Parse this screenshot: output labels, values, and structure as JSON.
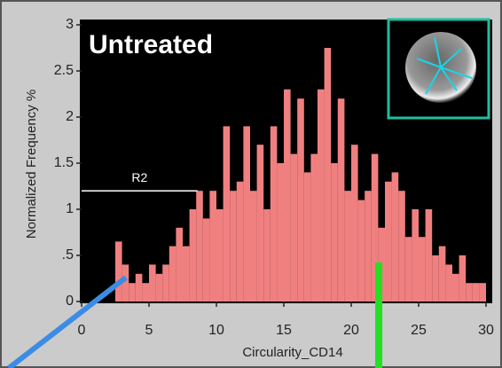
{
  "chart_data": {
    "type": "histogram",
    "title": "Untreated",
    "xlabel": "Circularity_CD14",
    "ylabel": "Normalized Frequency %",
    "color": "#f08080",
    "bins": [
      2.5,
      3,
      3.5,
      4,
      4.5,
      5,
      5.5,
      6,
      6.5,
      7,
      7.5,
      8,
      8.5,
      9,
      9.5,
      10,
      10.5,
      11,
      11.5,
      12,
      12.5,
      13,
      13.5,
      14,
      14.5,
      15,
      15.5,
      16,
      16.5,
      17,
      17.5,
      18,
      18.5,
      19,
      19.5,
      20,
      20.5,
      21,
      21.5,
      22,
      22.5,
      23,
      23.5,
      24,
      24.5,
      25,
      25.5,
      26,
      26.5,
      27,
      27.5,
      28,
      28.5,
      29,
      29.5,
      30
    ],
    "values": [
      0.65,
      0.4,
      0.2,
      0.3,
      0.2,
      0.4,
      0.3,
      0.4,
      0.6,
      0.8,
      0.6,
      1.0,
      1.2,
      0.9,
      1.2,
      1.0,
      1.9,
      1.2,
      1.3,
      1.9,
      1.2,
      1.7,
      1.0,
      1.9,
      1.5,
      2.3,
      1.6,
      2.2,
      1.4,
      1.6,
      2.3,
      2.75,
      1.5,
      2.2,
      1.2,
      1.7,
      1.1,
      1.2,
      1.6,
      0.8,
      1.3,
      1.4,
      1.2,
      0.7,
      1.0,
      0.7,
      1.0,
      0.5,
      0.6,
      0.4,
      0.3,
      0.5,
      0.2,
      0.2,
      0.2
    ],
    "xlim": [
      0,
      30
    ],
    "ylim": [
      0,
      3
    ],
    "xticks": [
      0,
      5,
      10,
      15,
      20,
      25,
      30
    ],
    "yticks": [
      0,
      {
        "value": 0.5,
        "label": ".5"
      },
      1,
      1.5,
      2,
      2.5,
      3
    ],
    "gate": {
      "label": "R2",
      "xrange": [
        0,
        8.6
      ],
      "y": 1.2
    }
  }
}
